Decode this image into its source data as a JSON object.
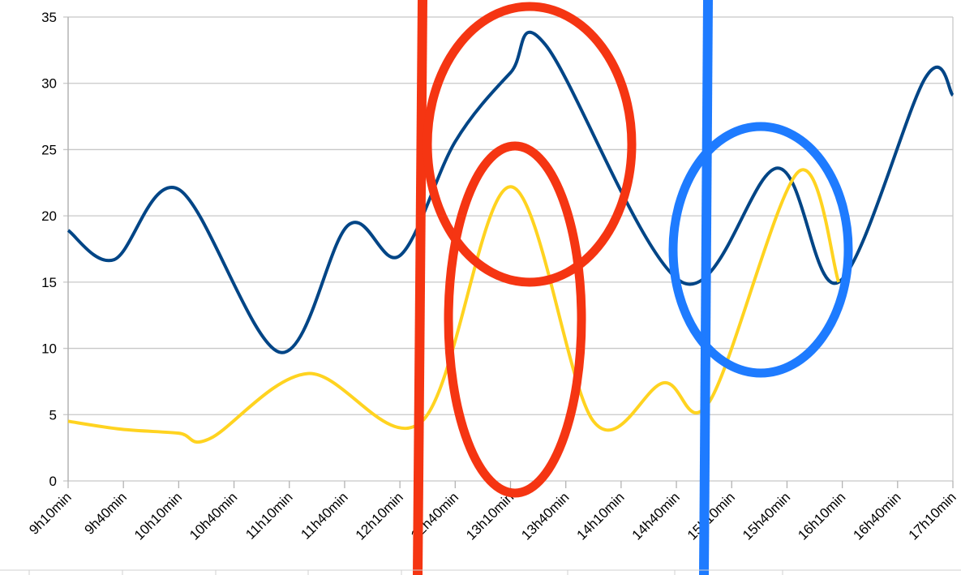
{
  "chart_data": {
    "type": "line",
    "title": "",
    "xlabel": "",
    "ylabel": "",
    "ylim": [
      0,
      35
    ],
    "yticks": [
      0,
      5,
      10,
      15,
      20,
      25,
      30,
      35
    ],
    "xticks": [
      "9h10min",
      "9h40min",
      "10h10min",
      "10h40min",
      "11h10min",
      "11h40min",
      "12h10min",
      "12h40min",
      "13h10min",
      "13h40min",
      "14h10min",
      "14h40min",
      "15h10min",
      "15h40min",
      "16h10min",
      "16h40min",
      "17h10min"
    ],
    "xlim": [
      "9:10",
      "17:10"
    ],
    "grid": true,
    "legend": "none",
    "smoothed": true,
    "series": [
      {
        "color": "#004586",
        "points": [
          [
            "9:10",
            18.9
          ],
          [
            "9:35",
            16.7
          ],
          [
            "10:10",
            22.0
          ],
          [
            "11:05",
            9.7
          ],
          [
            "11:42",
            19.3
          ],
          [
            "12:10",
            17.0
          ],
          [
            "12:40",
            25.6
          ],
          [
            "13:10",
            30.8
          ],
          [
            "13:29",
            32.9
          ],
          [
            "14:43",
            15.0
          ],
          [
            "15:35",
            23.6
          ],
          [
            "16:08",
            15.0
          ],
          [
            "16:55",
            30.4
          ],
          [
            "17:10",
            29.1
          ]
        ]
      },
      {
        "color": "#ffd320",
        "points": [
          [
            "9:10",
            4.5
          ],
          [
            "9:39",
            3.9
          ],
          [
            "10:10",
            3.6
          ],
          [
            "10:27",
            3.2
          ],
          [
            "11:20",
            8.1
          ],
          [
            "12:22",
            4.5
          ],
          [
            "13:10",
            22.2
          ],
          [
            "13:55",
            4.5
          ],
          [
            "14:33",
            7.4
          ],
          [
            "14:58",
            6.0
          ],
          [
            "15:46",
            23.3
          ],
          [
            "16:08",
            15.0
          ]
        ]
      }
    ]
  },
  "annotations": {
    "red_color": "#f53512",
    "blue_color": "#1e7bff"
  }
}
